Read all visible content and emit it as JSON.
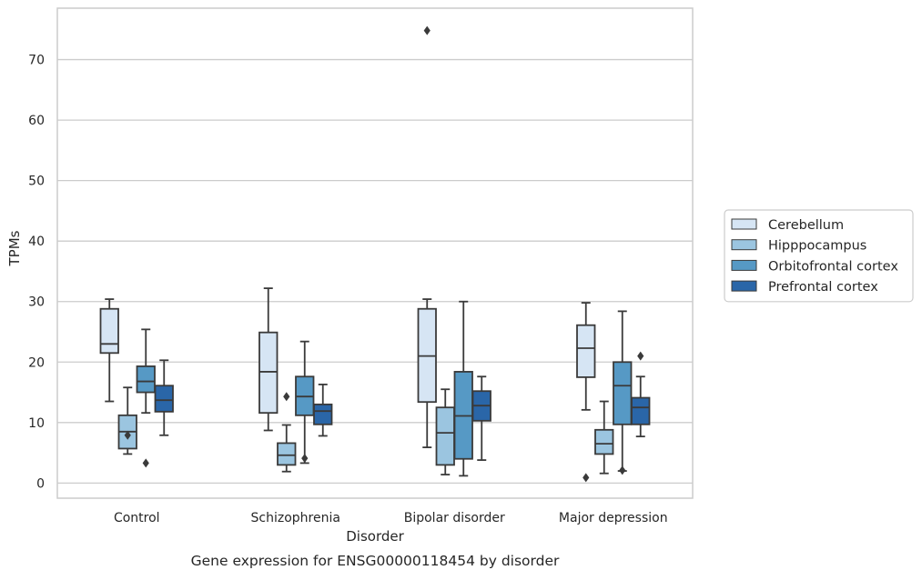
{
  "chart_data": {
    "type": "boxplot",
    "title": "Gene expression for ENSG00000118454 by disorder",
    "xlabel": "Disorder",
    "ylabel": "TPMs",
    "ylim": [
      -2.5,
      78.5
    ],
    "yticks": [
      0,
      10,
      20,
      30,
      40,
      50,
      60,
      70
    ],
    "grid": "horizontal",
    "legend_position": "right",
    "categories": [
      "Control",
      "Schizophrenia",
      "Bipolar disorder",
      "Major depression"
    ],
    "series": [
      {
        "name": "Cerebellum",
        "color": "#d6e5f4",
        "boxes": [
          {
            "whisker_low": 13.5,
            "q1": 21.5,
            "median": 23.0,
            "q3": 28.8,
            "whisker_high": 30.4,
            "outliers": []
          },
          {
            "whisker_low": 8.7,
            "q1": 11.6,
            "median": 18.4,
            "q3": 24.9,
            "whisker_high": 32.2,
            "outliers": []
          },
          {
            "whisker_low": 5.9,
            "q1": 13.4,
            "median": 21.0,
            "q3": 28.8,
            "whisker_high": 30.4,
            "outliers": [
              74.8
            ]
          },
          {
            "whisker_low": 12.1,
            "q1": 17.5,
            "median": 22.3,
            "q3": 26.1,
            "whisker_high": 29.8,
            "outliers": [
              0.9
            ]
          }
        ]
      },
      {
        "name": "Hipppocampus",
        "color": "#9bc5e0",
        "boxes": [
          {
            "whisker_low": 4.8,
            "q1": 5.7,
            "median": 8.5,
            "q3": 11.2,
            "whisker_high": 15.8,
            "outliers": [
              7.9
            ]
          },
          {
            "whisker_low": 1.9,
            "q1": 3.0,
            "median": 4.6,
            "q3": 6.6,
            "whisker_high": 9.6,
            "outliers": [
              14.3
            ]
          },
          {
            "whisker_low": 1.4,
            "q1": 3.0,
            "median": 8.3,
            "q3": 12.5,
            "whisker_high": 15.5,
            "outliers": []
          },
          {
            "whisker_low": 1.6,
            "q1": 4.8,
            "median": 6.5,
            "q3": 8.8,
            "whisker_high": 13.5,
            "outliers": []
          }
        ]
      },
      {
        "name": "Orbitofrontal cortex",
        "color": "#5699c5",
        "boxes": [
          {
            "whisker_low": 11.6,
            "q1": 15.0,
            "median": 16.8,
            "q3": 19.3,
            "whisker_high": 25.4,
            "outliers": [
              3.3
            ]
          },
          {
            "whisker_low": 3.3,
            "q1": 11.2,
            "median": 14.3,
            "q3": 17.6,
            "whisker_high": 23.4,
            "outliers": [
              4.1
            ]
          },
          {
            "whisker_low": 1.2,
            "q1": 4.0,
            "median": 11.1,
            "q3": 18.4,
            "whisker_high": 30.0,
            "outliers": []
          },
          {
            "whisker_low": 2.0,
            "q1": 9.7,
            "median": 16.1,
            "q3": 20.0,
            "whisker_high": 28.4,
            "outliers": [
              2.1
            ]
          }
        ]
      },
      {
        "name": "Prefrontal cortex",
        "color": "#2a66a8",
        "boxes": [
          {
            "whisker_low": 7.9,
            "q1": 11.8,
            "median": 13.7,
            "q3": 16.1,
            "whisker_high": 20.3,
            "outliers": []
          },
          {
            "whisker_low": 7.8,
            "q1": 9.7,
            "median": 11.9,
            "q3": 13.0,
            "whisker_high": 16.3,
            "outliers": []
          },
          {
            "whisker_low": 3.8,
            "q1": 10.3,
            "median": 12.8,
            "q3": 15.2,
            "whisker_high": 17.6,
            "outliers": []
          },
          {
            "whisker_low": 7.7,
            "q1": 9.7,
            "median": 12.5,
            "q3": 14.1,
            "whisker_high": 17.6,
            "outliers": [
              21.0
            ]
          }
        ]
      }
    ]
  },
  "styles": {
    "grid_color": "#cccccc",
    "line_color": "#3a3a3a",
    "spine_color": "#cccccc"
  }
}
